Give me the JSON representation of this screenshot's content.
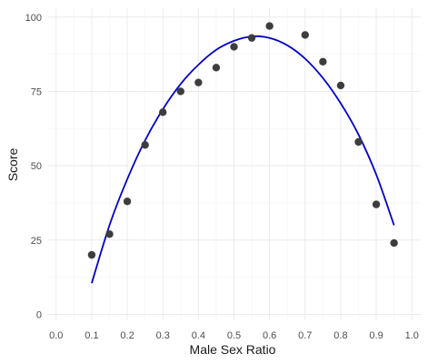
{
  "chart_data": {
    "type": "scatter",
    "xlabel": "Male Sex Ratio",
    "ylabel": "Score",
    "xlim": [
      -0.025,
      1.025
    ],
    "ylim": [
      -2,
      103
    ],
    "x_ticks": [
      0.0,
      0.1,
      0.2,
      0.3,
      0.4,
      0.5,
      0.6,
      0.7,
      0.8,
      0.9,
      1.0
    ],
    "x_tick_labels": [
      "0.0",
      "0.1",
      "0.2",
      "0.3",
      "0.4",
      "0.5",
      "0.6",
      "0.7",
      "0.8",
      "0.9",
      "1.0"
    ],
    "y_ticks": [
      0,
      25,
      50,
      75,
      100
    ],
    "y_tick_labels": [
      "0",
      "25",
      "50",
      "75",
      "100"
    ],
    "grid": true,
    "points": {
      "color": "#3d3d3d",
      "x": [
        0.1,
        0.15,
        0.2,
        0.25,
        0.3,
        0.35,
        0.4,
        0.45,
        0.5,
        0.55,
        0.6,
        0.7,
        0.75,
        0.8,
        0.85,
        0.9,
        0.95
      ],
      "y": [
        20,
        27,
        38,
        57,
        68,
        75,
        78,
        83,
        90,
        93,
        97,
        94,
        85,
        77,
        58,
        37,
        24
      ]
    },
    "fit_line": {
      "color": "#0000cc",
      "x": [
        0.1,
        0.15,
        0.2,
        0.25,
        0.3,
        0.35,
        0.4,
        0.45,
        0.5,
        0.55,
        0.6,
        0.65,
        0.7,
        0.75,
        0.8,
        0.85,
        0.9,
        0.95
      ],
      "y": [
        10.5,
        30,
        45.5,
        58.5,
        69,
        77.5,
        84,
        89,
        92,
        93.5,
        93,
        90.5,
        86,
        79.5,
        71,
        60.5,
        47,
        30
      ]
    }
  }
}
